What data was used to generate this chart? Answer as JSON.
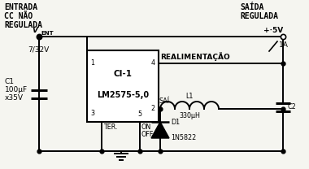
{
  "bg_color": "#f5f5f0",
  "ic_label1": "CI-1",
  "ic_label2": "LM2575-5,0",
  "text_entrada": "ENTRADA\nCC NÃO\nREGULADA",
  "text_vent": "V",
  "text_vent_sub": "ENT",
  "text_voltage": "7/32V",
  "text_c1": "C1\n100μF\nx35V",
  "text_realim": "REALIMENTAÇÃO",
  "text_saida": "SAÍDA\nREGULADA",
  "text_plus5v": "+·5V",
  "text_1a": "1A",
  "text_l1": "L1",
  "text_l1_val": "330μH",
  "text_c2": "C2",
  "text_d1": "D1",
  "text_d1_val": "1N5822",
  "text_ter": "TER.",
  "text_on_off": "ON\nOFF",
  "text_sai": "SAÍ.",
  "pin1": "1",
  "pin2": "2",
  "pin3": "3",
  "pin4": "4",
  "pin5": "5",
  "lw": 1.4,
  "lw_thick": 2.2,
  "fs_label": 7.0,
  "fs_pin": 5.8,
  "fs_text": 6.5,
  "fs_title": 7.0
}
